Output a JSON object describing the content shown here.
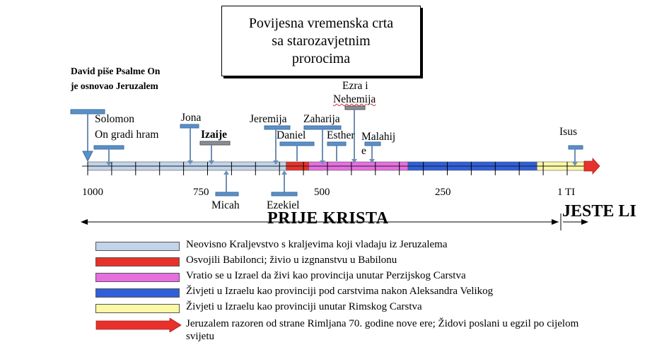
{
  "title": {
    "line1": "Povijesna vremenska crta",
    "line2": "sa starozavjetnim",
    "line3": "prorocima"
  },
  "david_note": {
    "line1": "David piše Psalme On",
    "line2": "je osnovao Jeruzalem"
  },
  "events": {
    "solomon_line1": "Solomon",
    "solomon_line2": "On gradi hram",
    "jona": "Jona",
    "izaije": "Izaije",
    "micah": "Micah",
    "jeremija": "Jeremija",
    "daniel": "Daniel",
    "ezekiel": "Ezekiel",
    "zaharija": "Zaharija",
    "esther": "Esther",
    "ezra_line1": "Ezra i",
    "ezra_line2": "Nehemija",
    "malahija_line1": "Malahij",
    "malahija_line2": "e",
    "isus": "Isus"
  },
  "axis_ticks": [
    "1000",
    "750",
    "500",
    "250",
    "1 TI"
  ],
  "era_labels": {
    "before": "PRIJE KRISTA",
    "after": "JESTE LI"
  },
  "periods": [
    {
      "color": "#c2d4ea",
      "start": 1000,
      "end": 586
    },
    {
      "color": "#e8312a",
      "start": 586,
      "end": 539
    },
    {
      "color": "#e66fe0",
      "start": 539,
      "end": 332
    },
    {
      "color": "#2f5fdb",
      "start": 332,
      "end": 63
    },
    {
      "color": "#fbf8a6",
      "start": 63,
      "end": 0
    }
  ],
  "legend": [
    {
      "color": "#c2d4ea",
      "text": "Neovisno Kraljevstvo s kraljevima koji vladaju iz Jeruzalema"
    },
    {
      "color": "#e8312a",
      "text": "Osvojili Babilonci; živio u izgnanstvu u Babilonu"
    },
    {
      "color": "#e66fe0",
      "text": "Vratio se u Izrael da živi kao provincija unutar Perzijskog Carstva"
    },
    {
      "color": "#2f5fdb",
      "text": "Živjeti u Izraelu kao provinciji pod carstvima nakon Aleksandra Velikog"
    },
    {
      "color": "#fbf8a6",
      "text": "Živjeti u Izraelu kao provinciji unutar Rimskog Carstva"
    },
    {
      "color": "#e8312a",
      "text": "Jeruzalem razoren od strane Rimljana 70. godine nove ere; Židovi poslani u egzil po cijelom",
      "text2": "svijetu"
    }
  ]
}
